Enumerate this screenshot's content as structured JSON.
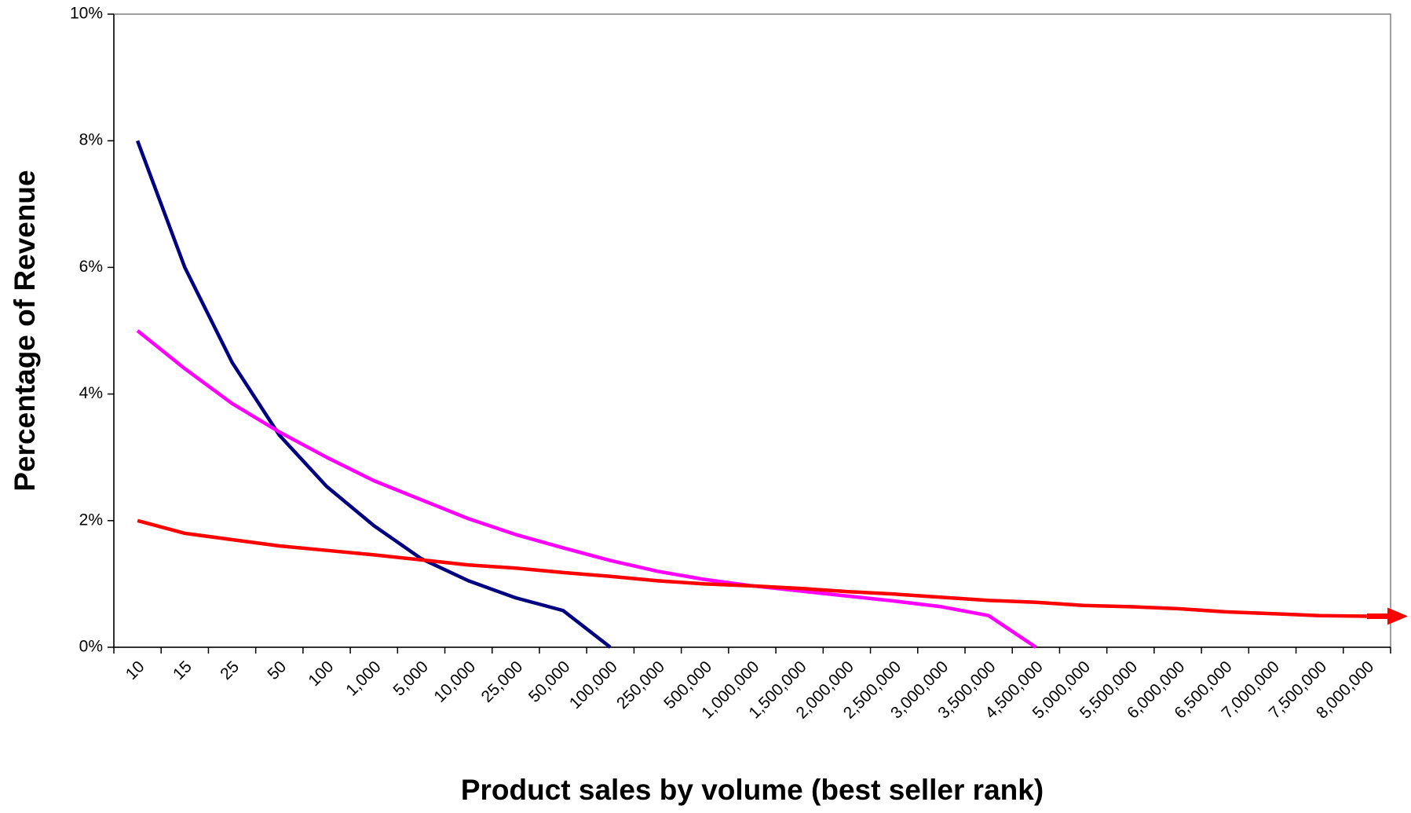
{
  "chart_data": {
    "type": "line",
    "y_label": "Percentage of Revenue",
    "x_label": "Product sales by volume (best seller rank)",
    "categories": [
      "10",
      "15",
      "25",
      "50",
      "100",
      "1,000",
      "5,000",
      "10,000",
      "25,000",
      "50,000",
      "100,000",
      "250,000",
      "500,000",
      "1,000,000",
      "1,500,000",
      "2,000,000",
      "2,500,000",
      "3,000,000",
      "3,500,000",
      "4,500,000",
      "5,000,000",
      "5,500,000",
      "6,000,000",
      "6,500,000",
      "7,000,000",
      "7,500,000",
      "8,000,000"
    ],
    "series": [
      {
        "color": "#000080",
        "values": [
          8,
          6,
          4.5,
          3.35,
          2.54,
          1.92,
          1.4,
          1.05,
          0.78,
          0.58,
          0,
          null,
          null,
          null,
          null,
          null,
          null,
          null,
          null,
          null,
          null,
          null,
          null,
          null,
          null,
          null,
          null
        ]
      },
      {
        "color": "#ff00ff",
        "values": [
          5,
          4.4,
          3.85,
          3.4,
          3.0,
          2.63,
          2.33,
          2.03,
          1.78,
          1.57,
          1.37,
          1.2,
          1.07,
          0.97,
          0.89,
          0.81,
          0.73,
          0.64,
          0.5,
          0,
          null,
          null,
          null,
          null,
          null,
          null,
          null
        ]
      },
      {
        "color": "#ff0000",
        "values": [
          2.0,
          1.8,
          1.7,
          1.6,
          1.53,
          1.46,
          1.38,
          1.3,
          1.25,
          1.18,
          1.12,
          1.05,
          1.0,
          0.97,
          0.93,
          0.88,
          0.84,
          0.79,
          0.74,
          0.71,
          0.66,
          0.64,
          0.61,
          0.56,
          0.53,
          0.5,
          0.49
        ]
      }
    ],
    "ylim": [
      0,
      10
    ],
    "yticks": [
      {
        "value": 0,
        "label": "0%"
      },
      {
        "value": 2,
        "label": "2%"
      },
      {
        "value": 4,
        "label": "4%"
      },
      {
        "value": 6,
        "label": "6%"
      },
      {
        "value": 8,
        "label": "8%"
      },
      {
        "value": 10,
        "label": "10%"
      }
    ],
    "grid": false
  }
}
